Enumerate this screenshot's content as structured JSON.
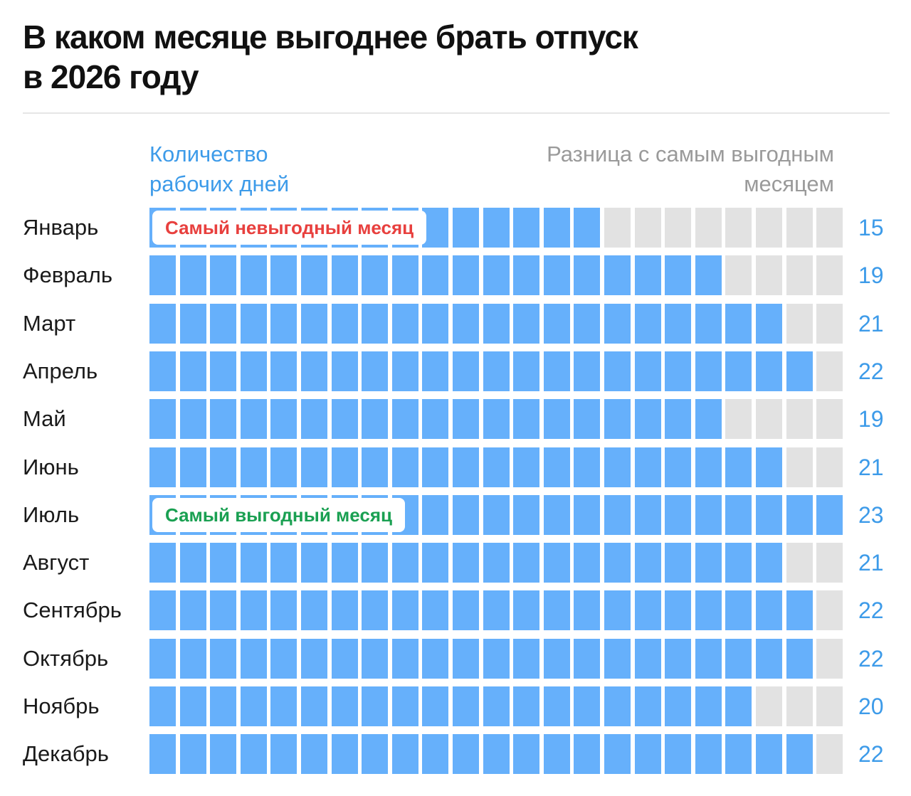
{
  "title_lines": [
    "В каком месяце выгоднее брать отпуск",
    "в 2026 году"
  ],
  "legend": {
    "left_lines": [
      "Количество",
      "рабочих дней"
    ],
    "right_lines": [
      "Разница с самым выгодным",
      "месяцем"
    ]
  },
  "badges": {
    "worst": "Самый невыгодный месяц",
    "best": "Самый выгодный месяц"
  },
  "colors": {
    "filled": "#66b0fb",
    "empty": "#e2e2e2",
    "accent_text": "#3d9be9",
    "worst_text": "#e8403e",
    "best_text": "#1aa052"
  },
  "chart_data": {
    "type": "bar",
    "title": "В каком месяце выгоднее брать отпуск в 2026 году",
    "xlabel": "Количество рабочих дней",
    "ylabel": "",
    "xlim": [
      0,
      23
    ],
    "grid": false,
    "categories": [
      "Январь",
      "Февраль",
      "Март",
      "Апрель",
      "Май",
      "Июнь",
      "Июль",
      "Август",
      "Сентябрь",
      "Октябрь",
      "Ноябрь",
      "Декабрь"
    ],
    "values": [
      15,
      19,
      21,
      22,
      19,
      21,
      23,
      21,
      22,
      22,
      20,
      22
    ],
    "max_units": 23,
    "annotations": [
      {
        "category": "Январь",
        "text": "Самый невыгодный месяц"
      },
      {
        "category": "Июль",
        "text": "Самый выгодный месяц"
      }
    ]
  }
}
